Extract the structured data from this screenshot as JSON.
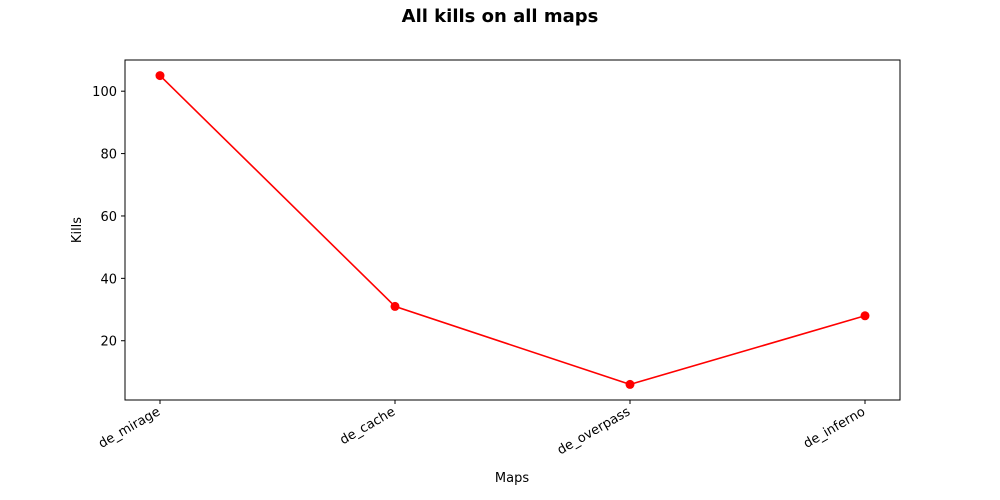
{
  "chart_data": {
    "type": "line",
    "title": "All kills on all maps",
    "xlabel": "Maps",
    "ylabel": "Kills",
    "categories": [
      "de_mirage",
      "de_cache",
      "de_overpass",
      "de_inferno"
    ],
    "series": [
      {
        "values": [
          105,
          31,
          6,
          28
        ]
      }
    ],
    "ylim": [
      1,
      110
    ],
    "yticks": [
      20,
      40,
      60,
      80,
      100
    ],
    "grid": false,
    "color": "#ff0000"
  }
}
